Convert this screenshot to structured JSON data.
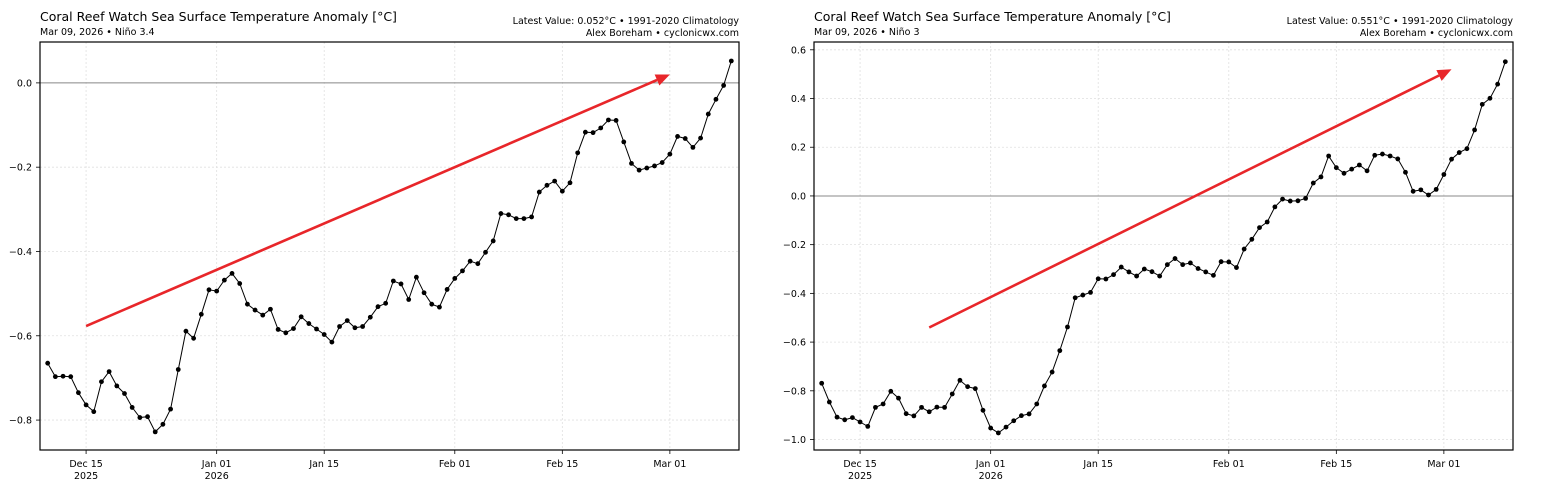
{
  "chart_data": [
    {
      "type": "line",
      "title": "Coral Reef Watch Sea Surface Temperature Anomaly [°C]",
      "subtitle": "Mar 09, 2026 • Niño 3.4",
      "info_line1": "Latest Value: 0.052°C • 1991-2020 Climatology",
      "info_line2": "Alex Boreham • cyclonicwx.com",
      "xlim": [
        "2025-12-09",
        "2026-03-10"
      ],
      "ylim": [
        -0.871,
        0.097
      ],
      "yticks": [
        0.0,
        -0.2,
        -0.4,
        -0.6,
        -0.8
      ],
      "ytick_labels": [
        "0.0",
        "−0.2",
        "−0.4",
        "−0.6",
        "−0.8"
      ],
      "xticks": [
        "2025-12-15",
        "2026-01-01",
        "2026-01-15",
        "2026-02-01",
        "2026-02-15",
        "2026-03-01"
      ],
      "xtick_labels": [
        [
          "Dec 15",
          "2025"
        ],
        [
          "Jan 01",
          "2026"
        ],
        [
          "Jan 15",
          ""
        ],
        [
          "Feb 01",
          ""
        ],
        [
          "Feb 15",
          ""
        ],
        [
          "Mar 01",
          ""
        ]
      ],
      "grid": true,
      "reference_line": 0.0,
      "line_color": "#000000",
      "arrow": {
        "color": "#e8262a",
        "start": [
          "2025-12-15",
          -0.577
        ],
        "end": [
          "2026-03-01",
          0.02
        ]
      },
      "x": [
        "2025-12-10",
        "2025-12-11",
        "2025-12-12",
        "2025-12-13",
        "2025-12-14",
        "2025-12-15",
        "2025-12-16",
        "2025-12-17",
        "2025-12-18",
        "2025-12-19",
        "2025-12-20",
        "2025-12-21",
        "2025-12-22",
        "2025-12-23",
        "2025-12-24",
        "2025-12-25",
        "2025-12-26",
        "2025-12-27",
        "2025-12-28",
        "2025-12-29",
        "2025-12-30",
        "2025-12-31",
        "2026-01-01",
        "2026-01-02",
        "2026-01-03",
        "2026-01-04",
        "2026-01-05",
        "2026-01-06",
        "2026-01-07",
        "2026-01-08",
        "2026-01-09",
        "2026-01-10",
        "2026-01-11",
        "2026-01-12",
        "2026-01-13",
        "2026-01-14",
        "2026-01-15",
        "2026-01-16",
        "2026-01-17",
        "2026-01-18",
        "2026-01-19",
        "2026-01-20",
        "2026-01-21",
        "2026-01-22",
        "2026-01-23",
        "2026-01-24",
        "2026-01-25",
        "2026-01-26",
        "2026-01-27",
        "2026-01-28",
        "2026-01-29",
        "2026-01-30",
        "2026-01-31",
        "2026-02-01",
        "2026-02-02",
        "2026-02-03",
        "2026-02-04",
        "2026-02-05",
        "2026-02-06",
        "2026-02-07",
        "2026-02-08",
        "2026-02-09",
        "2026-02-10",
        "2026-02-11",
        "2026-02-12",
        "2026-02-13",
        "2026-02-14",
        "2026-02-15",
        "2026-02-16",
        "2026-02-17",
        "2026-02-18",
        "2026-02-19",
        "2026-02-20",
        "2026-02-21",
        "2026-02-22",
        "2026-02-23",
        "2026-02-24",
        "2026-02-25",
        "2026-02-26",
        "2026-02-27",
        "2026-02-28",
        "2026-03-01",
        "2026-03-02",
        "2026-03-03",
        "2026-03-04",
        "2026-03-05",
        "2026-03-06",
        "2026-03-07",
        "2026-03-08",
        "2026-03-09"
      ],
      "y": [
        -0.665,
        -0.697,
        -0.696,
        -0.697,
        -0.735,
        -0.764,
        -0.78,
        -0.709,
        -0.685,
        -0.719,
        -0.737,
        -0.77,
        -0.794,
        -0.792,
        -0.828,
        -0.81,
        -0.774,
        -0.68,
        -0.589,
        -0.606,
        -0.549,
        -0.491,
        -0.494,
        -0.468,
        -0.452,
        -0.476,
        -0.525,
        -0.539,
        -0.551,
        -0.537,
        -0.585,
        -0.593,
        -0.583,
        -0.555,
        -0.571,
        -0.584,
        -0.597,
        -0.615,
        -0.578,
        -0.564,
        -0.581,
        -0.578,
        -0.556,
        -0.531,
        -0.523,
        -0.47,
        -0.477,
        -0.514,
        -0.461,
        -0.498,
        -0.525,
        -0.532,
        -0.49,
        -0.464,
        -0.446,
        -0.423,
        -0.429,
        -0.402,
        -0.375,
        -0.31,
        -0.313,
        -0.322,
        -0.322,
        -0.318,
        -0.259,
        -0.243,
        -0.233,
        -0.257,
        -0.237,
        -0.166,
        -0.117,
        -0.118,
        -0.107,
        -0.088,
        -0.089,
        -0.14,
        -0.191,
        -0.207,
        -0.202,
        -0.197,
        -0.189,
        -0.169,
        -0.127,
        -0.132,
        -0.153,
        -0.131,
        -0.074,
        -0.039,
        -0.006,
        0.052
      ]
    },
    {
      "type": "line",
      "title": "Coral Reef Watch Sea Surface Temperature Anomaly [°C]",
      "subtitle": "Mar 09, 2026 • Niño 3",
      "info_line1": "Latest Value: 0.551°C • 1991-2020 Climatology",
      "info_line2": "Alex Boreham • cyclonicwx.com",
      "xlim": [
        "2025-12-09",
        "2026-03-10"
      ],
      "ylim": [
        -1.043,
        0.632
      ],
      "yticks": [
        0.6,
        0.4,
        0.2,
        0.0,
        -0.2,
        -0.4,
        -0.6,
        -0.8,
        -1.0
      ],
      "ytick_labels": [
        "0.6",
        "0.4",
        "0.2",
        "0.0",
        "−0.2",
        "−0.4",
        "−0.6",
        "−0.8",
        "−1.0"
      ],
      "xticks": [
        "2025-12-15",
        "2026-01-01",
        "2026-01-15",
        "2026-02-01",
        "2026-02-15",
        "2026-03-01"
      ],
      "xtick_labels": [
        [
          "Dec 15",
          "2025"
        ],
        [
          "Jan 01",
          "2026"
        ],
        [
          "Jan 15",
          ""
        ],
        [
          "Feb 01",
          ""
        ],
        [
          "Feb 15",
          ""
        ],
        [
          "Mar 01",
          ""
        ]
      ],
      "grid": true,
      "reference_line": 0.0,
      "line_color": "#000000",
      "arrow": {
        "color": "#e8262a",
        "start": [
          "2025-12-24",
          -0.54
        ],
        "end": [
          "2026-03-02",
          0.52
        ]
      },
      "x": [
        "2025-12-10",
        "2025-12-11",
        "2025-12-12",
        "2025-12-13",
        "2025-12-14",
        "2025-12-15",
        "2025-12-16",
        "2025-12-17",
        "2025-12-18",
        "2025-12-19",
        "2025-12-20",
        "2025-12-21",
        "2025-12-22",
        "2025-12-23",
        "2025-12-24",
        "2025-12-25",
        "2025-12-26",
        "2025-12-27",
        "2025-12-28",
        "2025-12-29",
        "2025-12-30",
        "2025-12-31",
        "2026-01-01",
        "2026-01-02",
        "2026-01-03",
        "2026-01-04",
        "2026-01-05",
        "2026-01-06",
        "2026-01-07",
        "2026-01-08",
        "2026-01-09",
        "2026-01-10",
        "2026-01-11",
        "2026-01-12",
        "2026-01-13",
        "2026-01-14",
        "2026-01-15",
        "2026-01-16",
        "2026-01-17",
        "2026-01-18",
        "2026-01-19",
        "2026-01-20",
        "2026-01-21",
        "2026-01-22",
        "2026-01-23",
        "2026-01-24",
        "2026-01-25",
        "2026-01-26",
        "2026-01-27",
        "2026-01-28",
        "2026-01-29",
        "2026-01-30",
        "2026-01-31",
        "2026-02-01",
        "2026-02-02",
        "2026-02-03",
        "2026-02-04",
        "2026-02-05",
        "2026-02-06",
        "2026-02-07",
        "2026-02-08",
        "2026-02-09",
        "2026-02-10",
        "2026-02-11",
        "2026-02-12",
        "2026-02-13",
        "2026-02-14",
        "2026-02-15",
        "2026-02-16",
        "2026-02-17",
        "2026-02-18",
        "2026-02-19",
        "2026-02-20",
        "2026-02-21",
        "2026-02-22",
        "2026-02-23",
        "2026-02-24",
        "2026-02-25",
        "2026-02-26",
        "2026-02-27",
        "2026-02-28",
        "2026-03-01",
        "2026-03-02",
        "2026-03-03",
        "2026-03-04",
        "2026-03-05",
        "2026-03-06",
        "2026-03-07",
        "2026-03-08",
        "2026-03-09"
      ],
      "y": [
        -0.769,
        -0.846,
        -0.908,
        -0.919,
        -0.91,
        -0.928,
        -0.946,
        -0.868,
        -0.854,
        -0.802,
        -0.83,
        -0.894,
        -0.903,
        -0.868,
        -0.886,
        -0.867,
        -0.868,
        -0.813,
        -0.757,
        -0.783,
        -0.791,
        -0.88,
        -0.953,
        -0.973,
        -0.949,
        -0.923,
        -0.902,
        -0.895,
        -0.854,
        -0.78,
        -0.723,
        -0.635,
        -0.538,
        -0.418,
        -0.407,
        -0.396,
        -0.34,
        -0.341,
        -0.323,
        -0.292,
        -0.312,
        -0.329,
        -0.3,
        -0.311,
        -0.329,
        -0.282,
        -0.257,
        -0.282,
        -0.275,
        -0.298,
        -0.312,
        -0.326,
        -0.27,
        -0.271,
        -0.294,
        -0.218,
        -0.178,
        -0.13,
        -0.107,
        -0.045,
        -0.013,
        -0.021,
        -0.02,
        -0.01,
        0.053,
        0.078,
        0.164,
        0.116,
        0.093,
        0.11,
        0.127,
        0.103,
        0.167,
        0.172,
        0.164,
        0.152,
        0.097,
        0.019,
        0.025,
        0.004,
        0.027,
        0.088,
        0.151,
        0.178,
        0.194,
        0.271,
        0.376,
        0.401,
        0.459,
        0.551
      ]
    }
  ]
}
